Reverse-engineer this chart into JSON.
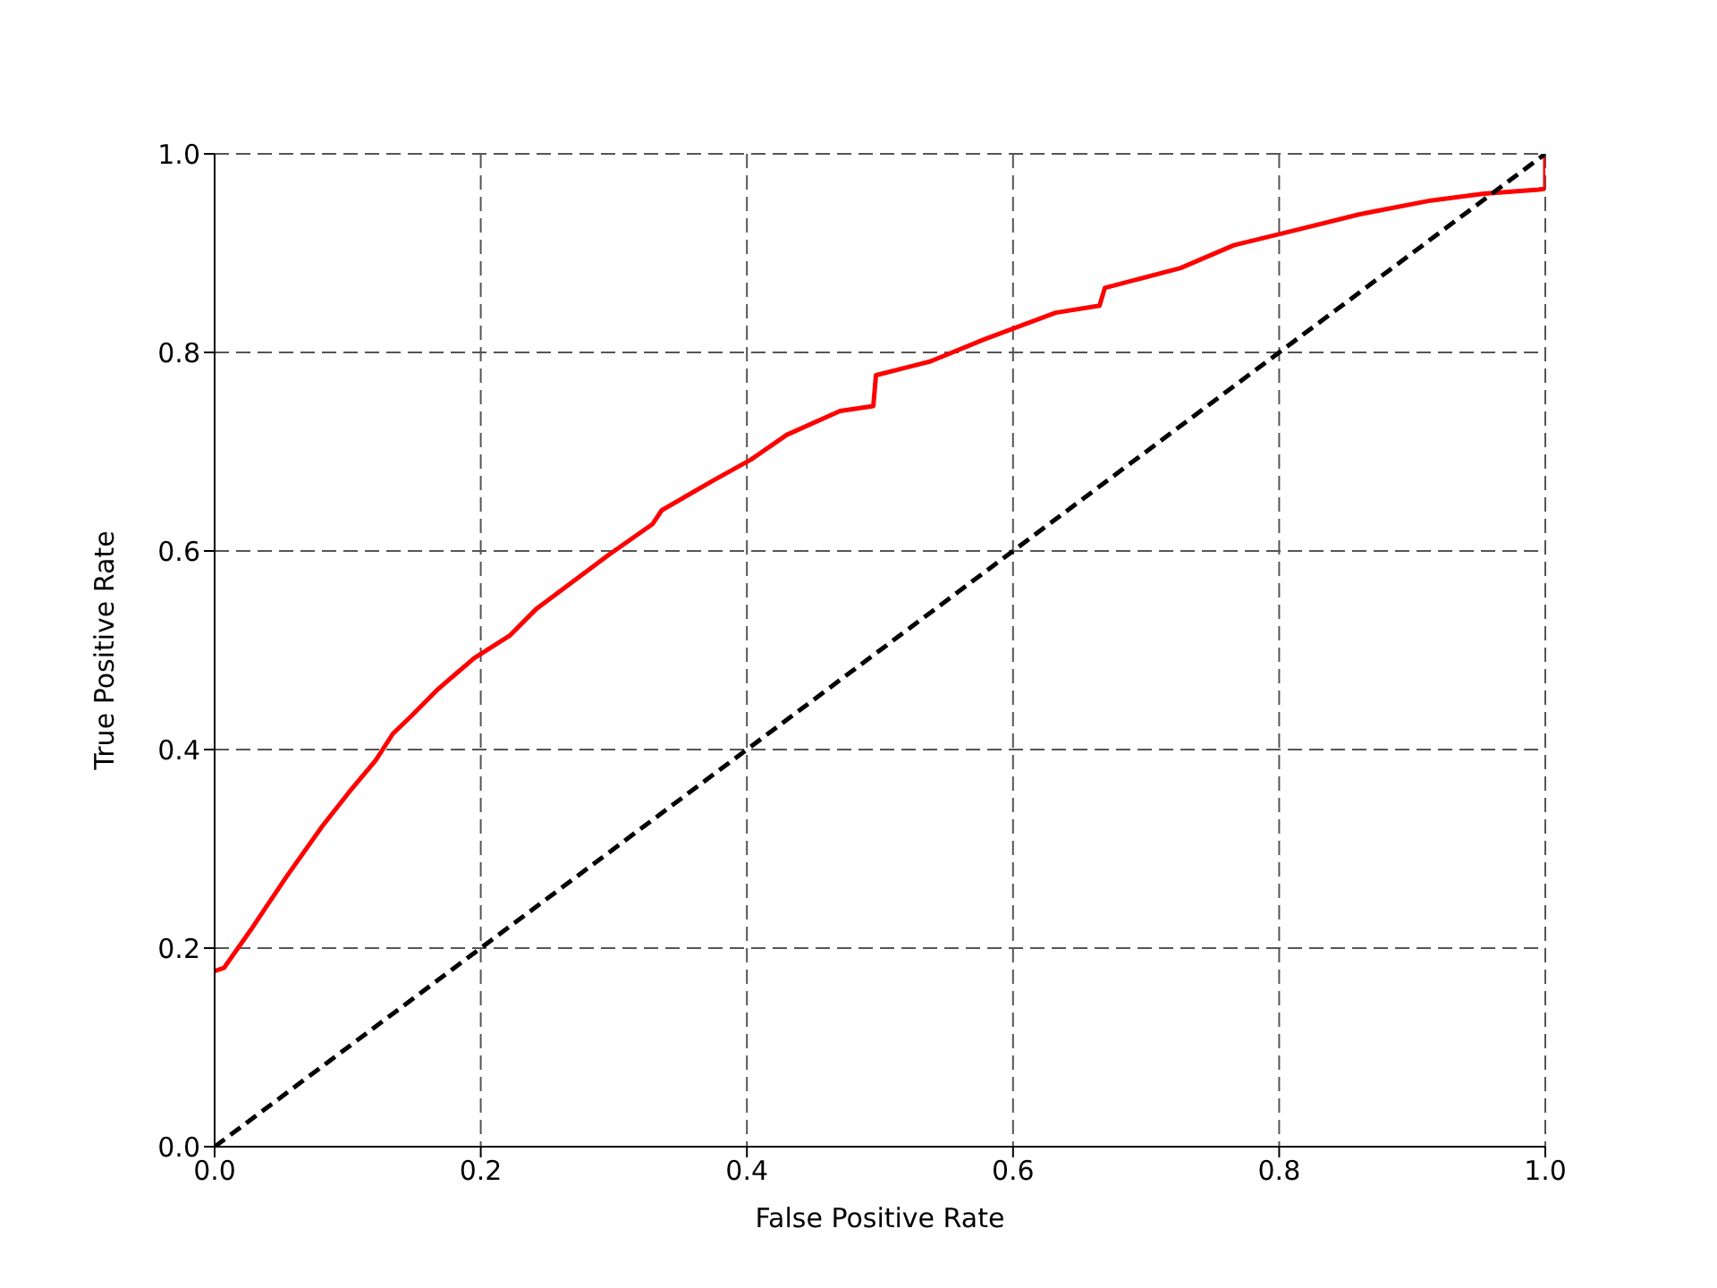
{
  "chart_data": {
    "type": "line",
    "xlabel": "False Positive Rate",
    "ylabel": "True Positive Rate",
    "xlim": [
      0,
      1
    ],
    "ylim": [
      0,
      1
    ],
    "xticks": [
      {
        "value": 0,
        "label": "0.0"
      },
      0.2,
      0.4,
      0.6,
      0.8,
      {
        "value": 1,
        "label": "1.0"
      }
    ],
    "yticks": [
      {
        "value": 0,
        "label": "0.0"
      },
      0.2,
      0.4,
      0.6,
      0.8,
      {
        "value": 1,
        "label": "1.0"
      }
    ],
    "grid": true,
    "marker": "none",
    "series": [
      {
        "color": "#ff0000",
        "line_style": "solid",
        "x": [
          0,
          0.007,
          0.027,
          0.054,
          0.081,
          0.101,
          0.121,
          0.134,
          0.148,
          0.168,
          0.195,
          0.222,
          0.242,
          0.269,
          0.296,
          0.329,
          0.336,
          0.376,
          0.403,
          0.43,
          0.47,
          0.495,
          0.497,
          0.538,
          0.578,
          0.632,
          0.665,
          0.669,
          0.726,
          0.766,
          0.806,
          0.86,
          0.914,
          0.954,
          0.995,
          1,
          1
        ],
        "values": [
          0.177,
          0.18,
          0.218,
          0.272,
          0.323,
          0.357,
          0.389,
          0.416,
          0.434,
          0.461,
          0.492,
          0.515,
          0.542,
          0.569,
          0.596,
          0.627,
          0.641,
          0.672,
          0.692,
          0.717,
          0.741,
          0.746,
          0.777,
          0.791,
          0.813,
          0.84,
          0.847,
          0.865,
          0.885,
          0.908,
          0.921,
          0.939,
          0.953,
          0.96,
          0.964,
          0.965,
          1
        ]
      },
      {
        "color": "#000000",
        "line_style": "dashed",
        "x": [
          0,
          1
        ],
        "values": [
          0,
          1
        ]
      }
    ]
  }
}
